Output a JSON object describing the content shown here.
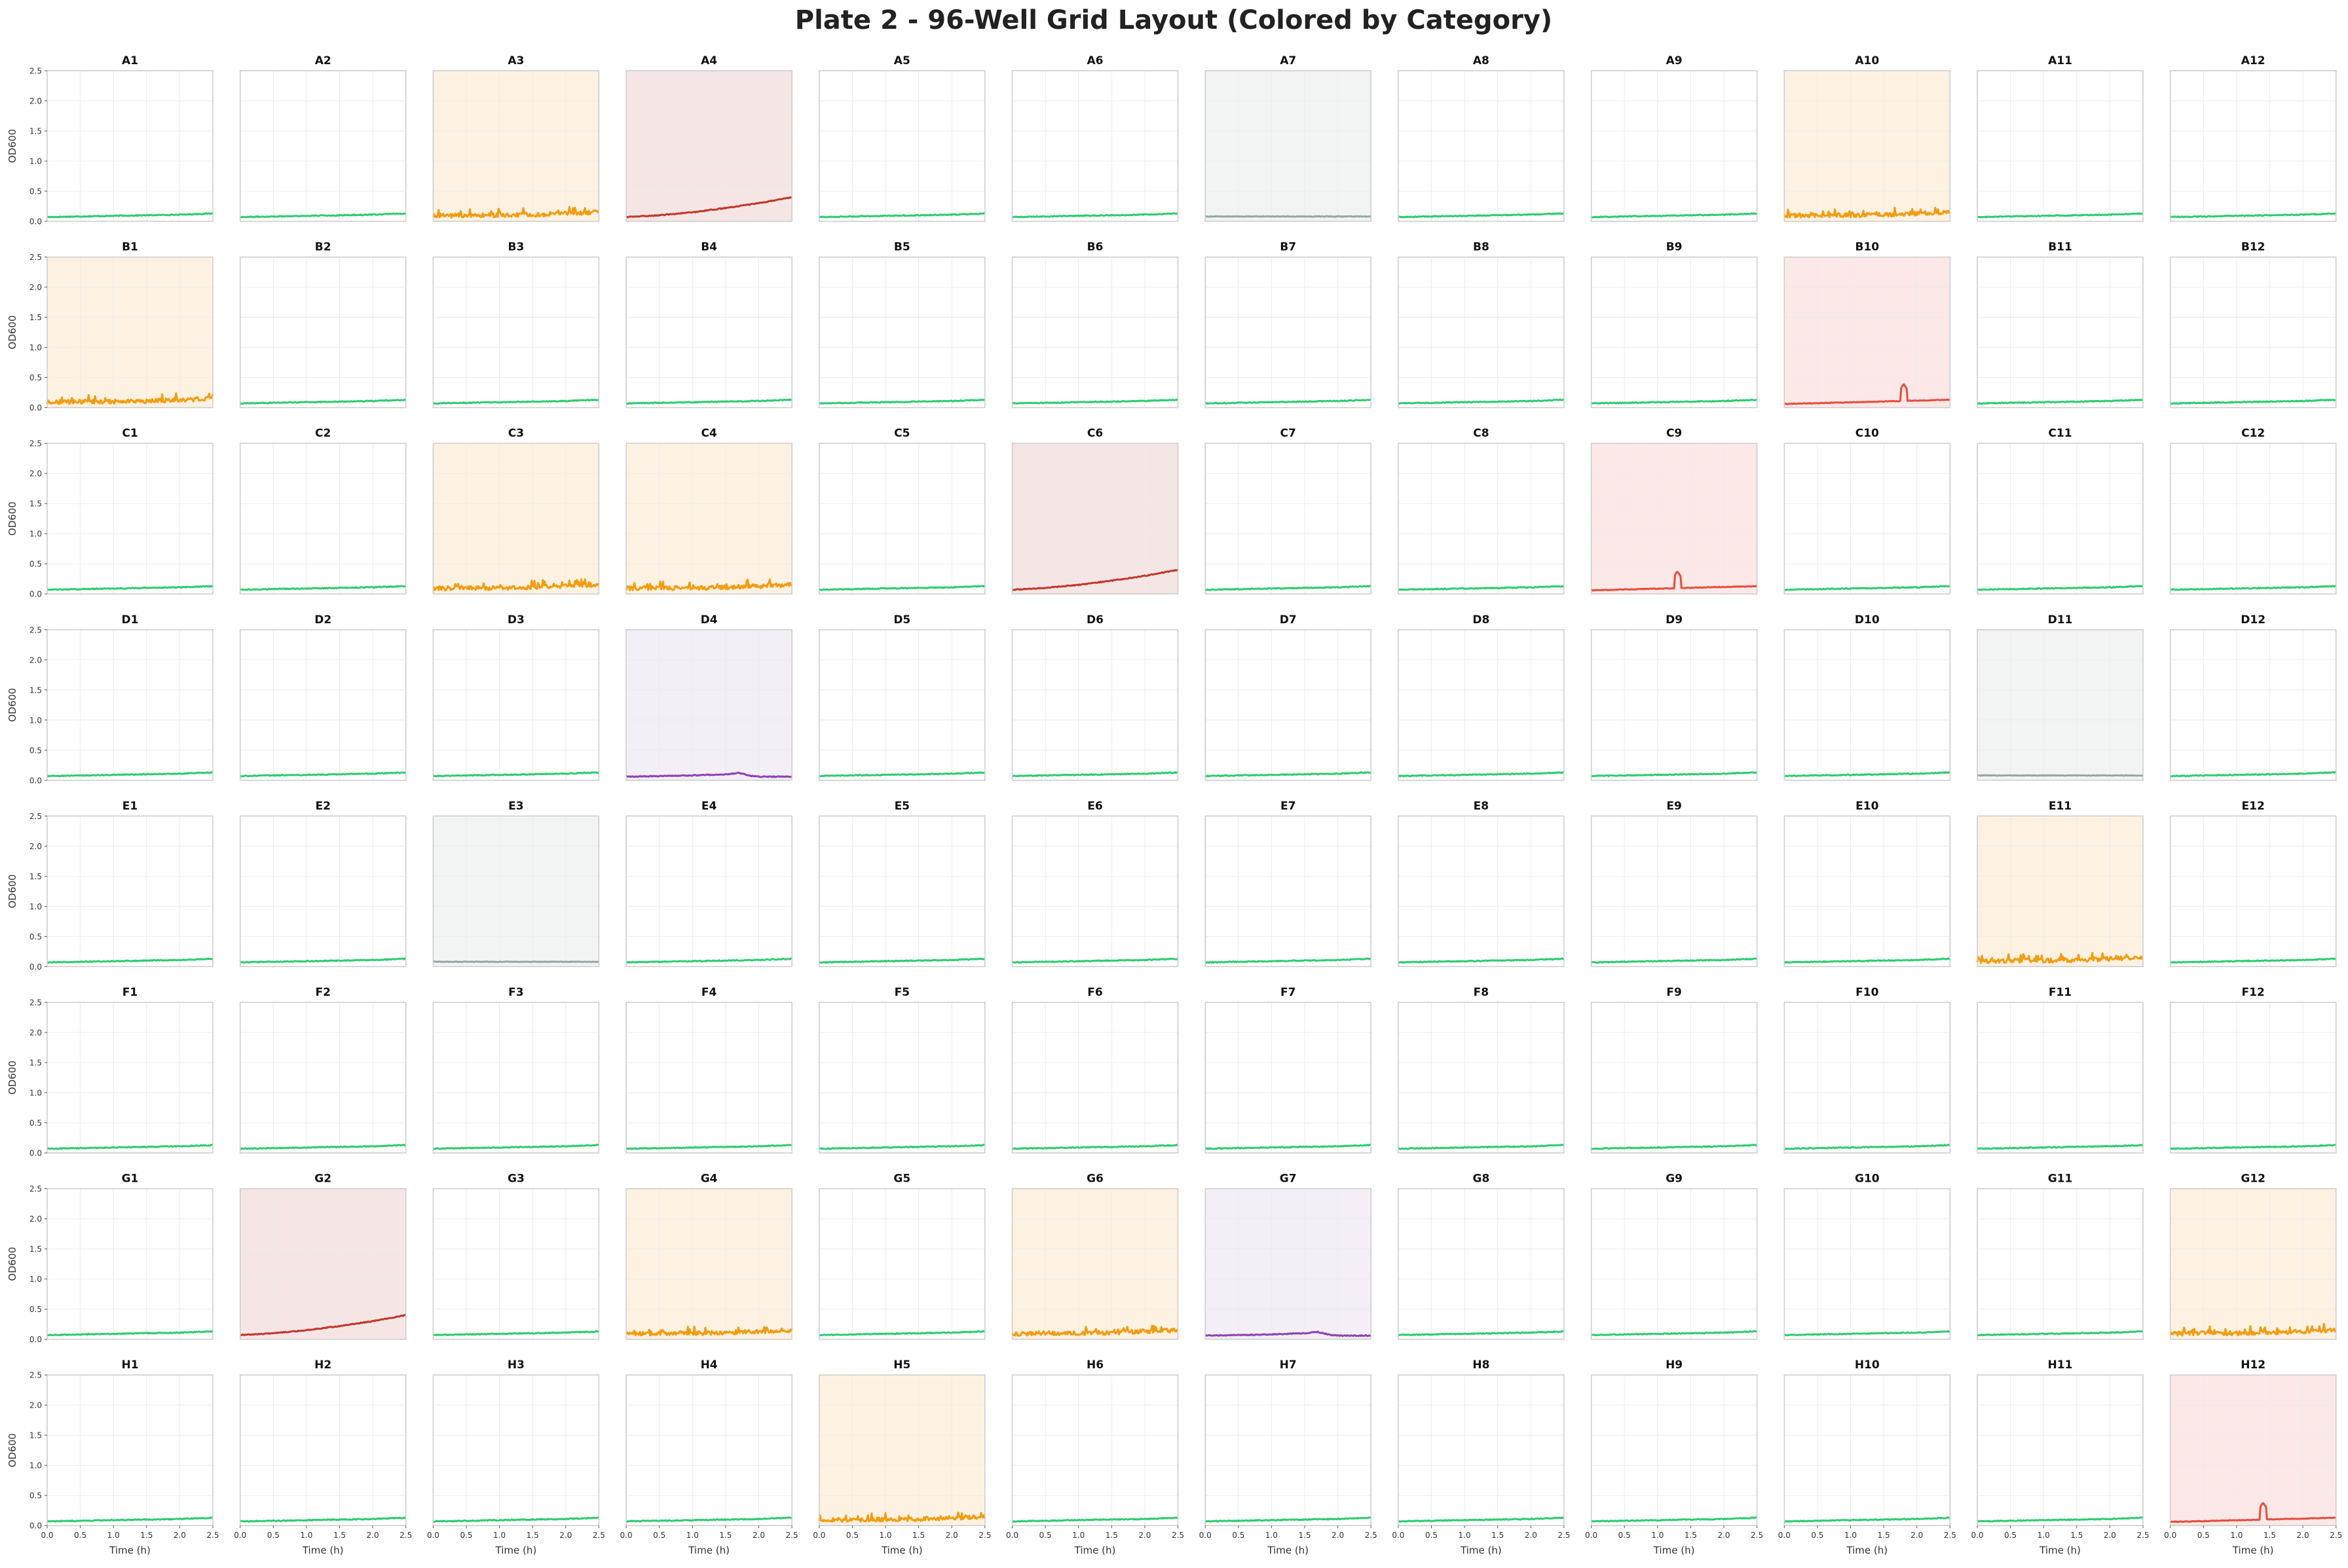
{
  "chart_data": {
    "type": "line",
    "title": "Plate 2 - 96-Well Grid Layout (Colored by Category)",
    "xlabel": "Time (h)",
    "ylabel": "OD600",
    "xlim": [
      0.0,
      2.5
    ],
    "ylim": [
      0.0,
      2.5
    ],
    "x_ticks": [
      "0.0",
      "0.5",
      "1.0",
      "1.5",
      "2.0",
      "2.5"
    ],
    "y_ticks": [
      "0.0",
      "0.5",
      "1.0",
      "1.5",
      "2.0",
      "2.5"
    ],
    "grid": true,
    "rows": [
      "A",
      "B",
      "C",
      "D",
      "E",
      "F",
      "G",
      "H"
    ],
    "columns": [
      1,
      2,
      3,
      4,
      5,
      6,
      7,
      8,
      9,
      10,
      11,
      12
    ],
    "category_colors": {
      "normal": {
        "line": "#2ecc71",
        "bg": "#ffffff"
      },
      "noisy": {
        "line": "#f39c12",
        "bg": "#fdf2e2"
      },
      "growing": {
        "line": "#c0392b",
        "bg": "#f6e5e5"
      },
      "spike": {
        "line": "#e74c3c",
        "bg": "#fce8e7"
      },
      "flat": {
        "line": "#95a5a6",
        "bg": "#f2f4f4"
      },
      "bump": {
        "line": "#8e44ad",
        "bg": "#f4eef7"
      }
    },
    "category_patterns": {
      "normal": {
        "x": [
          0.0,
          0.5,
          1.0,
          1.5,
          2.0,
          2.5
        ],
        "y": [
          0.07,
          0.08,
          0.09,
          0.1,
          0.11,
          0.13
        ]
      },
      "noisy": {
        "x": [
          0.0,
          0.5,
          1.0,
          1.5,
          2.0,
          2.5
        ],
        "y": [
          0.09,
          0.1,
          0.1,
          0.11,
          0.13,
          0.15
        ]
      },
      "growing": {
        "x": [
          0.0,
          0.5,
          1.0,
          1.5,
          2.0,
          2.5
        ],
        "y": [
          0.07,
          0.1,
          0.15,
          0.22,
          0.3,
          0.4
        ]
      },
      "spike": {
        "x": [
          0.0,
          1.0,
          1.7,
          1.8,
          1.9,
          2.5
        ],
        "y": [
          0.06,
          0.07,
          0.08,
          0.38,
          0.1,
          0.13
        ]
      },
      "flat": {
        "x": [
          0.0,
          1.0,
          2.0,
          2.5
        ],
        "y": [
          0.08,
          0.08,
          0.08,
          0.08
        ]
      },
      "bump": {
        "x": [
          0.0,
          0.5,
          1.0,
          1.5,
          1.7,
          1.9,
          2.0,
          2.5
        ],
        "y": [
          0.06,
          0.07,
          0.08,
          0.1,
          0.12,
          0.07,
          0.06,
          0.06
        ]
      }
    },
    "wells": [
      {
        "name": "A1",
        "category": "normal"
      },
      {
        "name": "A2",
        "category": "normal"
      },
      {
        "name": "A3",
        "category": "noisy"
      },
      {
        "name": "A4",
        "category": "growing"
      },
      {
        "name": "A5",
        "category": "normal"
      },
      {
        "name": "A6",
        "category": "normal"
      },
      {
        "name": "A7",
        "category": "flat"
      },
      {
        "name": "A8",
        "category": "normal"
      },
      {
        "name": "A9",
        "category": "normal"
      },
      {
        "name": "A10",
        "category": "noisy"
      },
      {
        "name": "A11",
        "category": "normal"
      },
      {
        "name": "A12",
        "category": "normal"
      },
      {
        "name": "B1",
        "category": "noisy"
      },
      {
        "name": "B2",
        "category": "normal"
      },
      {
        "name": "B3",
        "category": "normal"
      },
      {
        "name": "B4",
        "category": "normal"
      },
      {
        "name": "B5",
        "category": "normal"
      },
      {
        "name": "B6",
        "category": "normal"
      },
      {
        "name": "B7",
        "category": "normal"
      },
      {
        "name": "B8",
        "category": "normal"
      },
      {
        "name": "B9",
        "category": "normal"
      },
      {
        "name": "B10",
        "category": "spike",
        "spike_x": 1.8
      },
      {
        "name": "B11",
        "category": "normal"
      },
      {
        "name": "B12",
        "category": "normal"
      },
      {
        "name": "C1",
        "category": "normal"
      },
      {
        "name": "C2",
        "category": "normal"
      },
      {
        "name": "C3",
        "category": "noisy"
      },
      {
        "name": "C4",
        "category": "noisy"
      },
      {
        "name": "C5",
        "category": "normal"
      },
      {
        "name": "C6",
        "category": "growing"
      },
      {
        "name": "C7",
        "category": "normal"
      },
      {
        "name": "C8",
        "category": "normal"
      },
      {
        "name": "C9",
        "category": "spike",
        "spike_x": 1.3
      },
      {
        "name": "C10",
        "category": "normal"
      },
      {
        "name": "C11",
        "category": "normal"
      },
      {
        "name": "C12",
        "category": "normal"
      },
      {
        "name": "D1",
        "category": "normal"
      },
      {
        "name": "D2",
        "category": "normal"
      },
      {
        "name": "D3",
        "category": "normal"
      },
      {
        "name": "D4",
        "category": "bump"
      },
      {
        "name": "D5",
        "category": "normal"
      },
      {
        "name": "D6",
        "category": "normal"
      },
      {
        "name": "D7",
        "category": "normal"
      },
      {
        "name": "D8",
        "category": "normal"
      },
      {
        "name": "D9",
        "category": "normal"
      },
      {
        "name": "D10",
        "category": "normal"
      },
      {
        "name": "D11",
        "category": "flat"
      },
      {
        "name": "D12",
        "category": "normal"
      },
      {
        "name": "E1",
        "category": "normal"
      },
      {
        "name": "E2",
        "category": "normal"
      },
      {
        "name": "E3",
        "category": "flat"
      },
      {
        "name": "E4",
        "category": "normal"
      },
      {
        "name": "E5",
        "category": "normal"
      },
      {
        "name": "E6",
        "category": "normal"
      },
      {
        "name": "E7",
        "category": "normal"
      },
      {
        "name": "E8",
        "category": "normal"
      },
      {
        "name": "E9",
        "category": "normal"
      },
      {
        "name": "E10",
        "category": "normal"
      },
      {
        "name": "E11",
        "category": "noisy"
      },
      {
        "name": "E12",
        "category": "normal"
      },
      {
        "name": "F1",
        "category": "normal"
      },
      {
        "name": "F2",
        "category": "normal"
      },
      {
        "name": "F3",
        "category": "normal"
      },
      {
        "name": "F4",
        "category": "normal"
      },
      {
        "name": "F5",
        "category": "normal"
      },
      {
        "name": "F6",
        "category": "normal"
      },
      {
        "name": "F7",
        "category": "normal"
      },
      {
        "name": "F8",
        "category": "normal"
      },
      {
        "name": "F9",
        "category": "normal"
      },
      {
        "name": "F10",
        "category": "normal"
      },
      {
        "name": "F11",
        "category": "normal"
      },
      {
        "name": "F12",
        "category": "normal"
      },
      {
        "name": "G1",
        "category": "normal"
      },
      {
        "name": "G2",
        "category": "growing"
      },
      {
        "name": "G3",
        "category": "normal"
      },
      {
        "name": "G4",
        "category": "noisy"
      },
      {
        "name": "G5",
        "category": "normal"
      },
      {
        "name": "G6",
        "category": "noisy"
      },
      {
        "name": "G7",
        "category": "bump"
      },
      {
        "name": "G8",
        "category": "normal"
      },
      {
        "name": "G9",
        "category": "normal"
      },
      {
        "name": "G10",
        "category": "normal"
      },
      {
        "name": "G11",
        "category": "normal"
      },
      {
        "name": "G12",
        "category": "noisy"
      },
      {
        "name": "H1",
        "category": "normal"
      },
      {
        "name": "H2",
        "category": "normal"
      },
      {
        "name": "H3",
        "category": "normal"
      },
      {
        "name": "H4",
        "category": "normal"
      },
      {
        "name": "H5",
        "category": "noisy"
      },
      {
        "name": "H6",
        "category": "normal"
      },
      {
        "name": "H7",
        "category": "normal"
      },
      {
        "name": "H8",
        "category": "normal"
      },
      {
        "name": "H9",
        "category": "normal"
      },
      {
        "name": "H10",
        "category": "normal"
      },
      {
        "name": "H11",
        "category": "normal"
      },
      {
        "name": "H12",
        "category": "spike",
        "spike_x": 1.4
      }
    ]
  }
}
